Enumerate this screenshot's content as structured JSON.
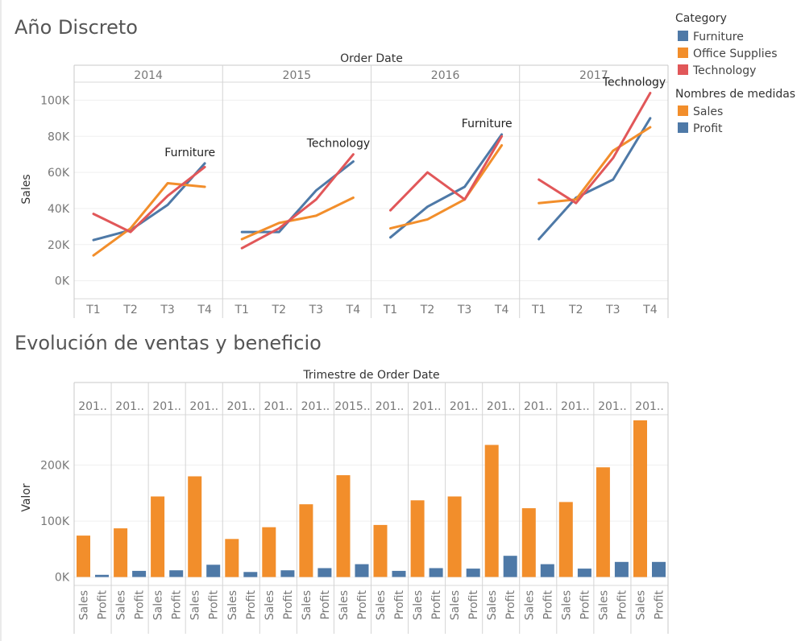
{
  "titles": {
    "top": "Año Discreto",
    "bottom": "Evolución de ventas y beneficio"
  },
  "legend": {
    "category_title": "Category",
    "category_items": [
      {
        "label": "Furniture",
        "color": "#4E79A7"
      },
      {
        "label": "Office Supplies",
        "color": "#F28E2B"
      },
      {
        "label": "Technology",
        "color": "#E15759"
      }
    ],
    "measures_title": "Nombres de medidas",
    "measure_items": [
      {
        "label": "Sales",
        "color": "#F28E2B"
      },
      {
        "label": "Profit",
        "color": "#4E79A7"
      }
    ]
  },
  "chart_data": [
    {
      "type": "line",
      "header": "Order Date",
      "ylabel": "Sales",
      "ylim": [
        -10000,
        110000
      ],
      "yticks": [
        0,
        20000,
        40000,
        60000,
        80000,
        100000
      ],
      "ytick_labels": [
        "0K",
        "20K",
        "40K",
        "60K",
        "80K",
        "100K"
      ],
      "columns": [
        "2014",
        "2015",
        "2016",
        "2017"
      ],
      "x": [
        "T1",
        "T2",
        "T3",
        "T4"
      ],
      "series": [
        {
          "name": "Furniture",
          "color": "#4E79A7",
          "values": [
            [
              22500,
              28000,
              42000,
              65000
            ],
            [
              27000,
              27000,
              50000,
              66000
            ],
            [
              24000,
              41000,
              52000,
              81000
            ],
            [
              23000,
              46000,
              56000,
              90000
            ]
          ]
        },
        {
          "name": "Office Supplies",
          "color": "#F28E2B",
          "values": [
            [
              14000,
              29000,
              54000,
              52000
            ],
            [
              23000,
              32000,
              36000,
              46000
            ],
            [
              29000,
              34000,
              45000,
              75000
            ],
            [
              43000,
              45000,
              72000,
              85000
            ]
          ]
        },
        {
          "name": "Technology",
          "color": "#E15759",
          "values": [
            [
              37000,
              27000,
              47000,
              63000
            ],
            [
              18000,
              29000,
              45000,
              70000
            ],
            [
              39000,
              60000,
              45000,
              80000
            ],
            [
              56000,
              43000,
              68000,
              104000
            ]
          ]
        }
      ],
      "annotations": [
        {
          "column": 0,
          "text": "Furniture"
        },
        {
          "column": 1,
          "text": "Technology"
        },
        {
          "column": 2,
          "text": "Furniture"
        },
        {
          "column": 3,
          "text": "Technology"
        }
      ]
    },
    {
      "type": "bar",
      "header": "Trimestre de Order Date",
      "ylabel": "Valor",
      "ylim": [
        -15000,
        290000
      ],
      "yticks": [
        0,
        100000,
        200000
      ],
      "ytick_labels": [
        "0K",
        "100K",
        "200K"
      ],
      "groups": [
        "201..",
        "201..",
        "201..",
        "201..",
        "201..",
        "201..",
        "201..",
        "2015..",
        "201..",
        "201..",
        "201..",
        "201..",
        "201..",
        "201..",
        "201..",
        "201.."
      ],
      "measures": [
        "Sales",
        "Profit"
      ],
      "series": [
        {
          "name": "Sales",
          "color": "#F28E2B",
          "values": [
            74000,
            87000,
            144000,
            180000,
            68000,
            89000,
            130000,
            182000,
            93000,
            137000,
            144000,
            236000,
            123000,
            134000,
            196000,
            280000
          ]
        },
        {
          "name": "Profit",
          "color": "#4E79A7",
          "values": [
            4000,
            11000,
            12000,
            22000,
            9000,
            12000,
            16000,
            23000,
            11000,
            16000,
            15000,
            38000,
            23000,
            15000,
            27000,
            27000
          ]
        }
      ]
    }
  ]
}
